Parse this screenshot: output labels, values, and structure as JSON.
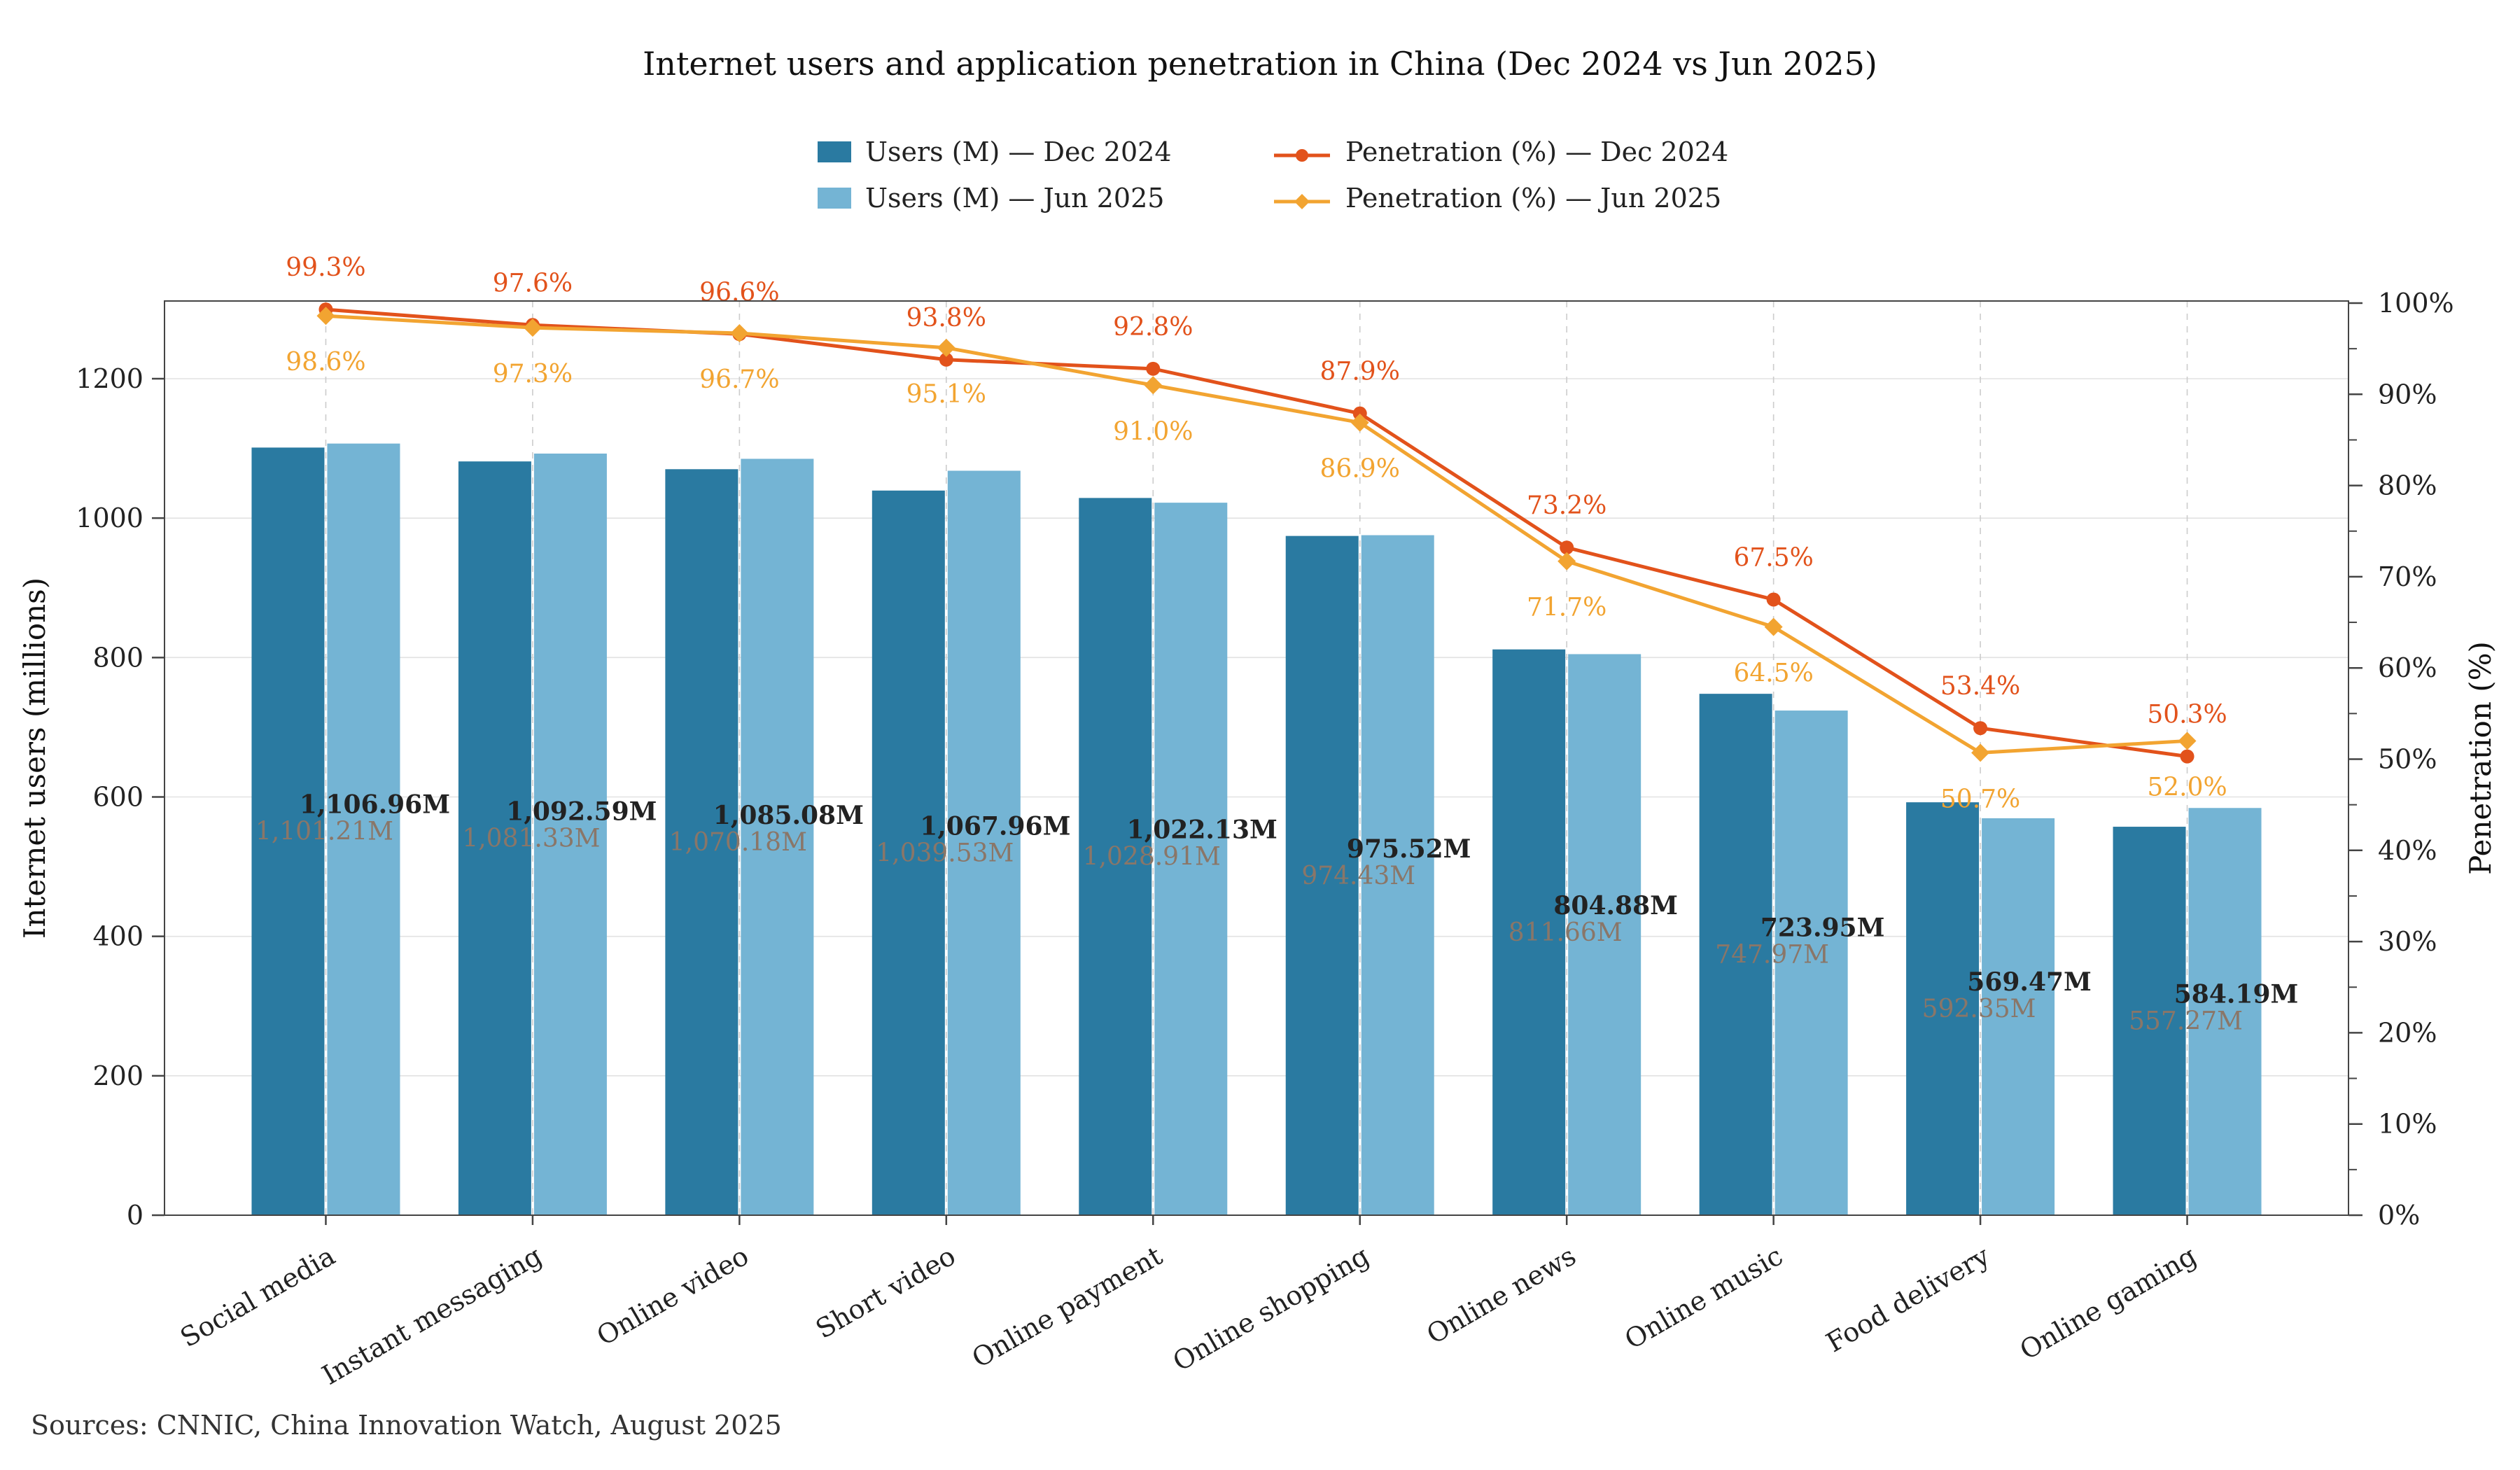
{
  "title": "Internet users and application penetration in China (Dec 2024 vs Jun 2025)",
  "source": "Sources: CNNIC, China Innovation Watch, August 2025",
  "legend": {
    "users_dec": "Users (M) — Dec 2024",
    "users_jun": "Users (M) — Jun 2025",
    "pen_dec": "Penetration (%) — Dec 2024",
    "pen_jun": "Penetration (%) — Jun 2025"
  },
  "axes": {
    "left_label": "Internet users (millions)",
    "right_label": "Penetration (%)",
    "left_ticks": [
      0,
      200,
      400,
      600,
      800,
      1000,
      1200
    ],
    "right_ticks": [
      {
        "v": 0,
        "label": "0%"
      },
      {
        "v": 10,
        "label": "10%"
      },
      {
        "v": 20,
        "label": "20%"
      },
      {
        "v": 30,
        "label": "30%"
      },
      {
        "v": 40,
        "label": "40%"
      },
      {
        "v": 50,
        "label": "50%"
      },
      {
        "v": 60,
        "label": "60%"
      },
      {
        "v": 70,
        "label": "70%"
      },
      {
        "v": 80,
        "label": "80%"
      },
      {
        "v": 90,
        "label": "90%"
      },
      {
        "v": 100,
        "label": "100%"
      }
    ]
  },
  "chart_data": {
    "type": "bar+line",
    "title": "Internet users and application penetration in China (Dec 2024 vs Jun 2025)",
    "categories": [
      "Social media",
      "Instant messaging",
      "Online video",
      "Short video",
      "Online payment",
      "Online shopping",
      "Online news",
      "Online music",
      "Food delivery",
      "Online gaming"
    ],
    "ylim_left": [
      0,
      1315
    ],
    "ylim_right": [
      0,
      100
    ],
    "grid": true,
    "legend_position": "top-center",
    "series": [
      {
        "name": "Users (M) — Dec 2024",
        "type": "bar",
        "axis": "left",
        "color": "#2a7aa1",
        "values": [
          1101.21,
          1081.33,
          1070.18,
          1039.53,
          1028.91,
          974.43,
          811.66,
          747.97,
          592.35,
          557.27
        ],
        "labels": [
          "1,101.21M",
          "1,081.33M",
          "1,070.18M",
          "1,039.53M",
          "1,028.91M",
          "974.43M",
          "811.66M",
          "747.97M",
          "592.35M",
          "557.27M"
        ]
      },
      {
        "name": "Users (M) — Jun 2025",
        "type": "bar",
        "axis": "left",
        "color": "#74b4d4",
        "values": [
          1106.96,
          1092.59,
          1085.08,
          1067.96,
          1022.13,
          975.52,
          804.88,
          723.95,
          569.47,
          584.19
        ],
        "labels": [
          "1,106.96M",
          "1,092.59M",
          "1,085.08M",
          "1,067.96M",
          "1,022.13M",
          "975.52M",
          "804.88M",
          "723.95M",
          "569.47M",
          "584.19M"
        ]
      },
      {
        "name": "Penetration (%) — Dec 2024",
        "type": "line",
        "axis": "right",
        "color": "#e2521b",
        "marker": "circle",
        "values": [
          99.3,
          97.6,
          96.6,
          93.8,
          92.8,
          87.9,
          73.2,
          67.5,
          53.4,
          50.3
        ],
        "labels": [
          "99.3%",
          "97.6%",
          "96.6%",
          "93.8%",
          "92.8%",
          "87.9%",
          "73.2%",
          "67.5%",
          "53.4%",
          "50.3%"
        ]
      },
      {
        "name": "Penetration (%) — Jun 2025",
        "type": "line",
        "axis": "right",
        "color": "#f2a431",
        "marker": "diamond",
        "values": [
          98.6,
          97.3,
          96.7,
          95.1,
          91.0,
          86.9,
          71.7,
          64.5,
          50.7,
          52.0
        ],
        "labels": [
          "98.6%",
          "97.3%",
          "96.7%",
          "95.1%",
          "91.0%",
          "86.9%",
          "71.7%",
          "64.5%",
          "50.7%",
          "52.0%"
        ]
      }
    ]
  }
}
